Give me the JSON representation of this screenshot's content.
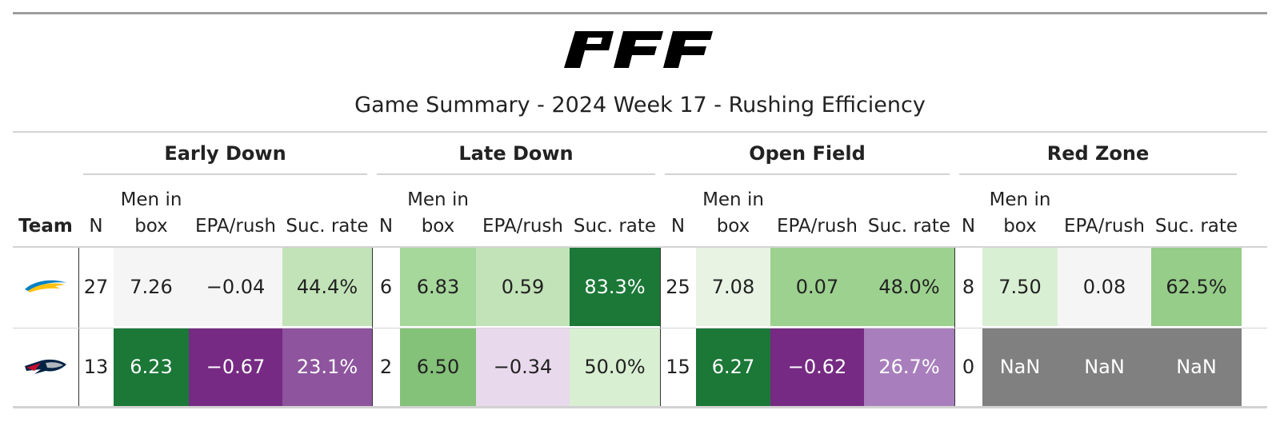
{
  "title": "Game Summary - 2024 Week 17 - Rushing Efficiency",
  "logo": {
    "name": "pff-logo",
    "text": "PFF"
  },
  "chart_data": {
    "type": "table",
    "groups": [
      "Early Down",
      "Late Down",
      "Open Field",
      "Red Zone"
    ],
    "team_header": "Team",
    "sub_headers": [
      {
        "line1": "",
        "line2": "N"
      },
      {
        "line1": "Men in",
        "line2": "box"
      },
      {
        "line1": "",
        "line2": "EPA/rush"
      },
      {
        "line1": "",
        "line2": "Suc. rate"
      }
    ],
    "rows": [
      {
        "team_logo": "chargers-logo-icon",
        "cells": [
          {
            "text": "27",
            "bg": "#ffffff",
            "fg": "#222222"
          },
          {
            "text": "7.26",
            "bg": "#f5f5f5",
            "fg": "#222222"
          },
          {
            "text": "−0.04",
            "bg": "#f5f5f5",
            "fg": "#222222"
          },
          {
            "text": "44.4%",
            "bg": "#c2e3b8",
            "fg": "#222222"
          },
          {
            "text": "6",
            "bg": "#ffffff",
            "fg": "#222222"
          },
          {
            "text": "6.83",
            "bg": "#a6d79b",
            "fg": "#222222"
          },
          {
            "text": "0.59",
            "bg": "#c2e3b8",
            "fg": "#222222"
          },
          {
            "text": "83.3%",
            "bg": "#1b7837",
            "fg": "#ffffff"
          },
          {
            "text": "25",
            "bg": "#ffffff",
            "fg": "#222222"
          },
          {
            "text": "7.08",
            "bg": "#e8f3e4",
            "fg": "#222222"
          },
          {
            "text": "0.07",
            "bg": "#9dd18f",
            "fg": "#222222"
          },
          {
            "text": "48.0%",
            "bg": "#9dd18f",
            "fg": "#222222"
          },
          {
            "text": "8",
            "bg": "#ffffff",
            "fg": "#222222"
          },
          {
            "text": "7.50",
            "bg": "#d9efd3",
            "fg": "#222222"
          },
          {
            "text": "0.08",
            "bg": "#f5f5f5",
            "fg": "#222222"
          },
          {
            "text": "62.5%",
            "bg": "#95cd89",
            "fg": "#222222"
          }
        ]
      },
      {
        "team_logo": "patriots-logo-icon",
        "cells": [
          {
            "text": "13",
            "bg": "#ffffff",
            "fg": "#222222"
          },
          {
            "text": "6.23",
            "bg": "#1b7837",
            "fg": "#ffffff"
          },
          {
            "text": "−0.67",
            "bg": "#762a83",
            "fg": "#ffffff"
          },
          {
            "text": "23.1%",
            "bg": "#8e549d",
            "fg": "#ffffff"
          },
          {
            "text": "2",
            "bg": "#ffffff",
            "fg": "#222222"
          },
          {
            "text": "6.50",
            "bg": "#84c179",
            "fg": "#222222"
          },
          {
            "text": "−0.34",
            "bg": "#e9d9ec",
            "fg": "#222222"
          },
          {
            "text": "50.0%",
            "bg": "#d8efd2",
            "fg": "#222222"
          },
          {
            "text": "15",
            "bg": "#ffffff",
            "fg": "#222222"
          },
          {
            "text": "6.27",
            "bg": "#1b7837",
            "fg": "#ffffff"
          },
          {
            "text": "−0.62",
            "bg": "#762a83",
            "fg": "#ffffff"
          },
          {
            "text": "26.7%",
            "bg": "#a87fbc",
            "fg": "#ffffff"
          },
          {
            "text": "0",
            "bg": "#ffffff",
            "fg": "#222222"
          },
          {
            "text": "NaN",
            "bg": "#808080",
            "fg": "#ffffff"
          },
          {
            "text": "NaN",
            "bg": "#808080",
            "fg": "#ffffff"
          },
          {
            "text": "NaN",
            "bg": "#808080",
            "fg": "#ffffff"
          }
        ]
      }
    ]
  }
}
